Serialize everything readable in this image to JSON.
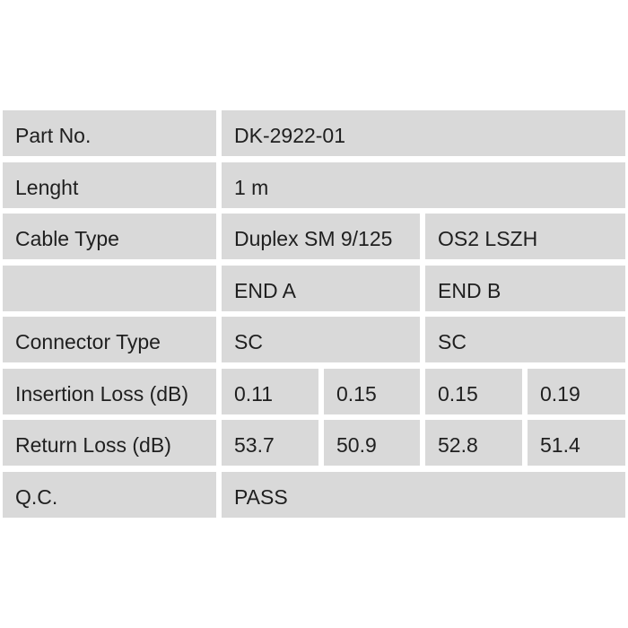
{
  "theme": {
    "page-bg": "#ffffff",
    "cell-bg": "#d9d9d9",
    "text": "#1f1f1f"
  },
  "table": {
    "rows": [
      {
        "name": "part-no",
        "cells": [
          {
            "text": "Part No."
          },
          {
            "text": "DK-2922-01"
          }
        ]
      },
      {
        "name": "length",
        "cells": [
          {
            "text": "Lenght"
          },
          {
            "text": "1 m"
          }
        ]
      },
      {
        "name": "cable-type",
        "cells": [
          {
            "text": "Cable Type"
          },
          {
            "text": "Duplex SM 9/125"
          },
          {
            "text": "OS2 LSZH"
          }
        ]
      },
      {
        "name": "end-header",
        "cells": [
          {
            "text": ""
          },
          {
            "text": "END A"
          },
          {
            "text": "END B"
          }
        ]
      },
      {
        "name": "connector-type",
        "cells": [
          {
            "text": "Connector Type"
          },
          {
            "text": "SC"
          },
          {
            "text": "SC"
          }
        ]
      },
      {
        "name": "insertion-loss",
        "cells": [
          {
            "text": "Insertion Loss (dB)"
          },
          {
            "text": "0.11"
          },
          {
            "text": "0.15"
          },
          {
            "text": "0.15"
          },
          {
            "text": "0.19"
          }
        ]
      },
      {
        "name": "return-loss",
        "cells": [
          {
            "text": "Return Loss (dB)"
          },
          {
            "text": "53.7"
          },
          {
            "text": "50.9"
          },
          {
            "text": "52.8"
          },
          {
            "text": "51.4"
          }
        ]
      },
      {
        "name": "qc",
        "cells": [
          {
            "text": "Q.C."
          },
          {
            "text": "PASS"
          }
        ]
      }
    ]
  }
}
